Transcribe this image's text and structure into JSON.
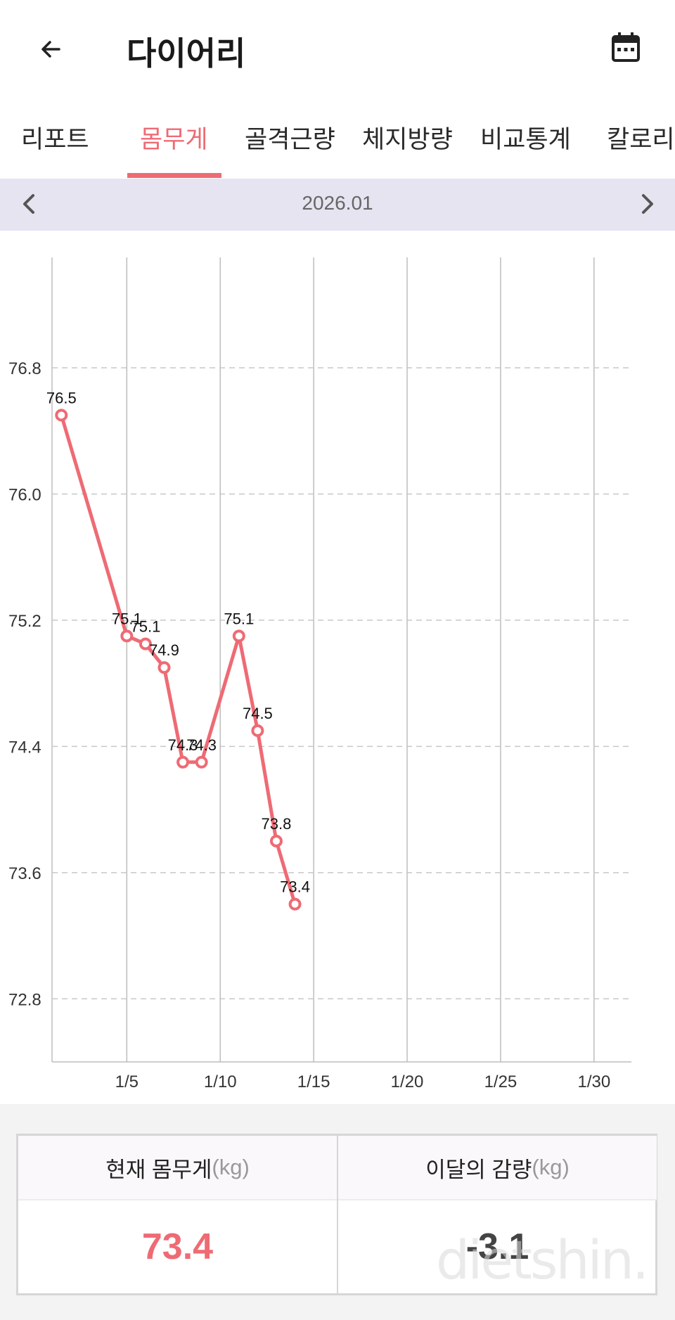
{
  "header": {
    "title": "다이어리",
    "back_icon": "arrow-left-icon",
    "calendar_icon": "calendar-icon"
  },
  "tabs": [
    {
      "label": "리포트",
      "active": false
    },
    {
      "label": "몸무게",
      "active": true
    },
    {
      "label": "골격근량",
      "active": false
    },
    {
      "label": "체지방량",
      "active": false
    },
    {
      "label": "비교통계",
      "active": false
    },
    {
      "label": "칼로리",
      "active": false
    }
  ],
  "month_nav": {
    "label": "2026.01",
    "prev_icon": "chevron-left-icon",
    "next_icon": "chevron-right-icon"
  },
  "colors": {
    "accent": "#ee6b74",
    "month_bar_bg": "#e6e4f0",
    "grid": "#bdbdbd"
  },
  "chart_data": {
    "type": "line",
    "title": "",
    "xlabel": "",
    "ylabel": "",
    "x_ticks": [
      "1/5",
      "1/10",
      "1/15",
      "1/20",
      "1/25",
      "1/30"
    ],
    "x_tick_days": [
      5,
      10,
      15,
      20,
      25,
      30
    ],
    "xlim": [
      1,
      32
    ],
    "y_ticks": [
      "76.8",
      "76.0",
      "75.2",
      "74.4",
      "73.6",
      "72.8"
    ],
    "ylim": [
      72.4,
      77.5
    ],
    "grid": "vertical solid, horizontal dashed",
    "series": [
      {
        "x": [
          1.5,
          5,
          6,
          7,
          8,
          9,
          11,
          12,
          13,
          14
        ],
        "values": [
          76.5,
          75.1,
          75.05,
          74.9,
          74.3,
          74.3,
          75.1,
          74.5,
          73.8,
          73.4
        ],
        "labels": [
          "76.5",
          "75.1",
          "75.1",
          "74.9",
          "74.3",
          "74.3",
          "75.1",
          "74.5",
          "73.8",
          "73.4"
        ]
      }
    ]
  },
  "summary": {
    "current_label": "현재 몸무게",
    "current_unit": "(kg)",
    "current_value": "73.4",
    "diff_label": "이달의 감량",
    "diff_unit": "(kg)",
    "diff_value": "-3.1"
  },
  "watermark": "dietshin.com"
}
